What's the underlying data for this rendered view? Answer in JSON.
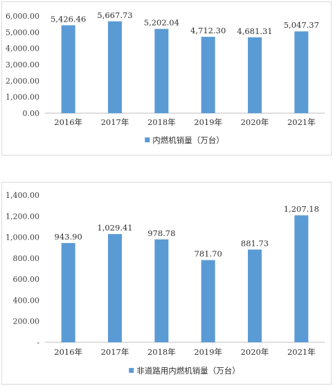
{
  "chart_data": [
    {
      "type": "bar",
      "categories": [
        "2016年",
        "2017年",
        "2018年",
        "2019年",
        "2020年",
        "2021年"
      ],
      "series": [
        {
          "name": "内燃机销量（万台）",
          "values": [
            5426.46,
            5667.73,
            5202.04,
            4712.3,
            4681.31,
            5047.37
          ],
          "labels": [
            "5,426.46",
            "5,667.73",
            "5,202.04",
            "4,712.30",
            "4,681.31",
            "5,047.37"
          ]
        }
      ],
      "ylim": [
        0,
        6000
      ],
      "yticks": [
        "0.00",
        "1,000.00",
        "2,000.00",
        "3,000.00",
        "4,000.00",
        "5,000.00",
        "6,000.00"
      ],
      "grid": false,
      "legend": "bottom",
      "color": "#5b9bd5"
    },
    {
      "type": "bar",
      "categories": [
        "2016年",
        "2017年",
        "2018年",
        "2019年",
        "2020年",
        "2021年"
      ],
      "series": [
        {
          "name": "非道路用内燃机销量（万台）",
          "values": [
            943.9,
            1029.41,
            978.78,
            781.7,
            881.73,
            1207.18
          ],
          "labels": [
            "943.90",
            "1,029.41",
            "978.78",
            "781.70",
            "881.73",
            "1,207.18"
          ]
        }
      ],
      "ylim": [
        0,
        1400
      ],
      "yticks": [
        "-",
        "200.00",
        "400.00",
        "600.00",
        "800.00",
        "1,000.00",
        "1,200.00",
        "1,400.00"
      ],
      "grid": false,
      "legend": "bottom",
      "color": "#5b9bd5"
    }
  ]
}
